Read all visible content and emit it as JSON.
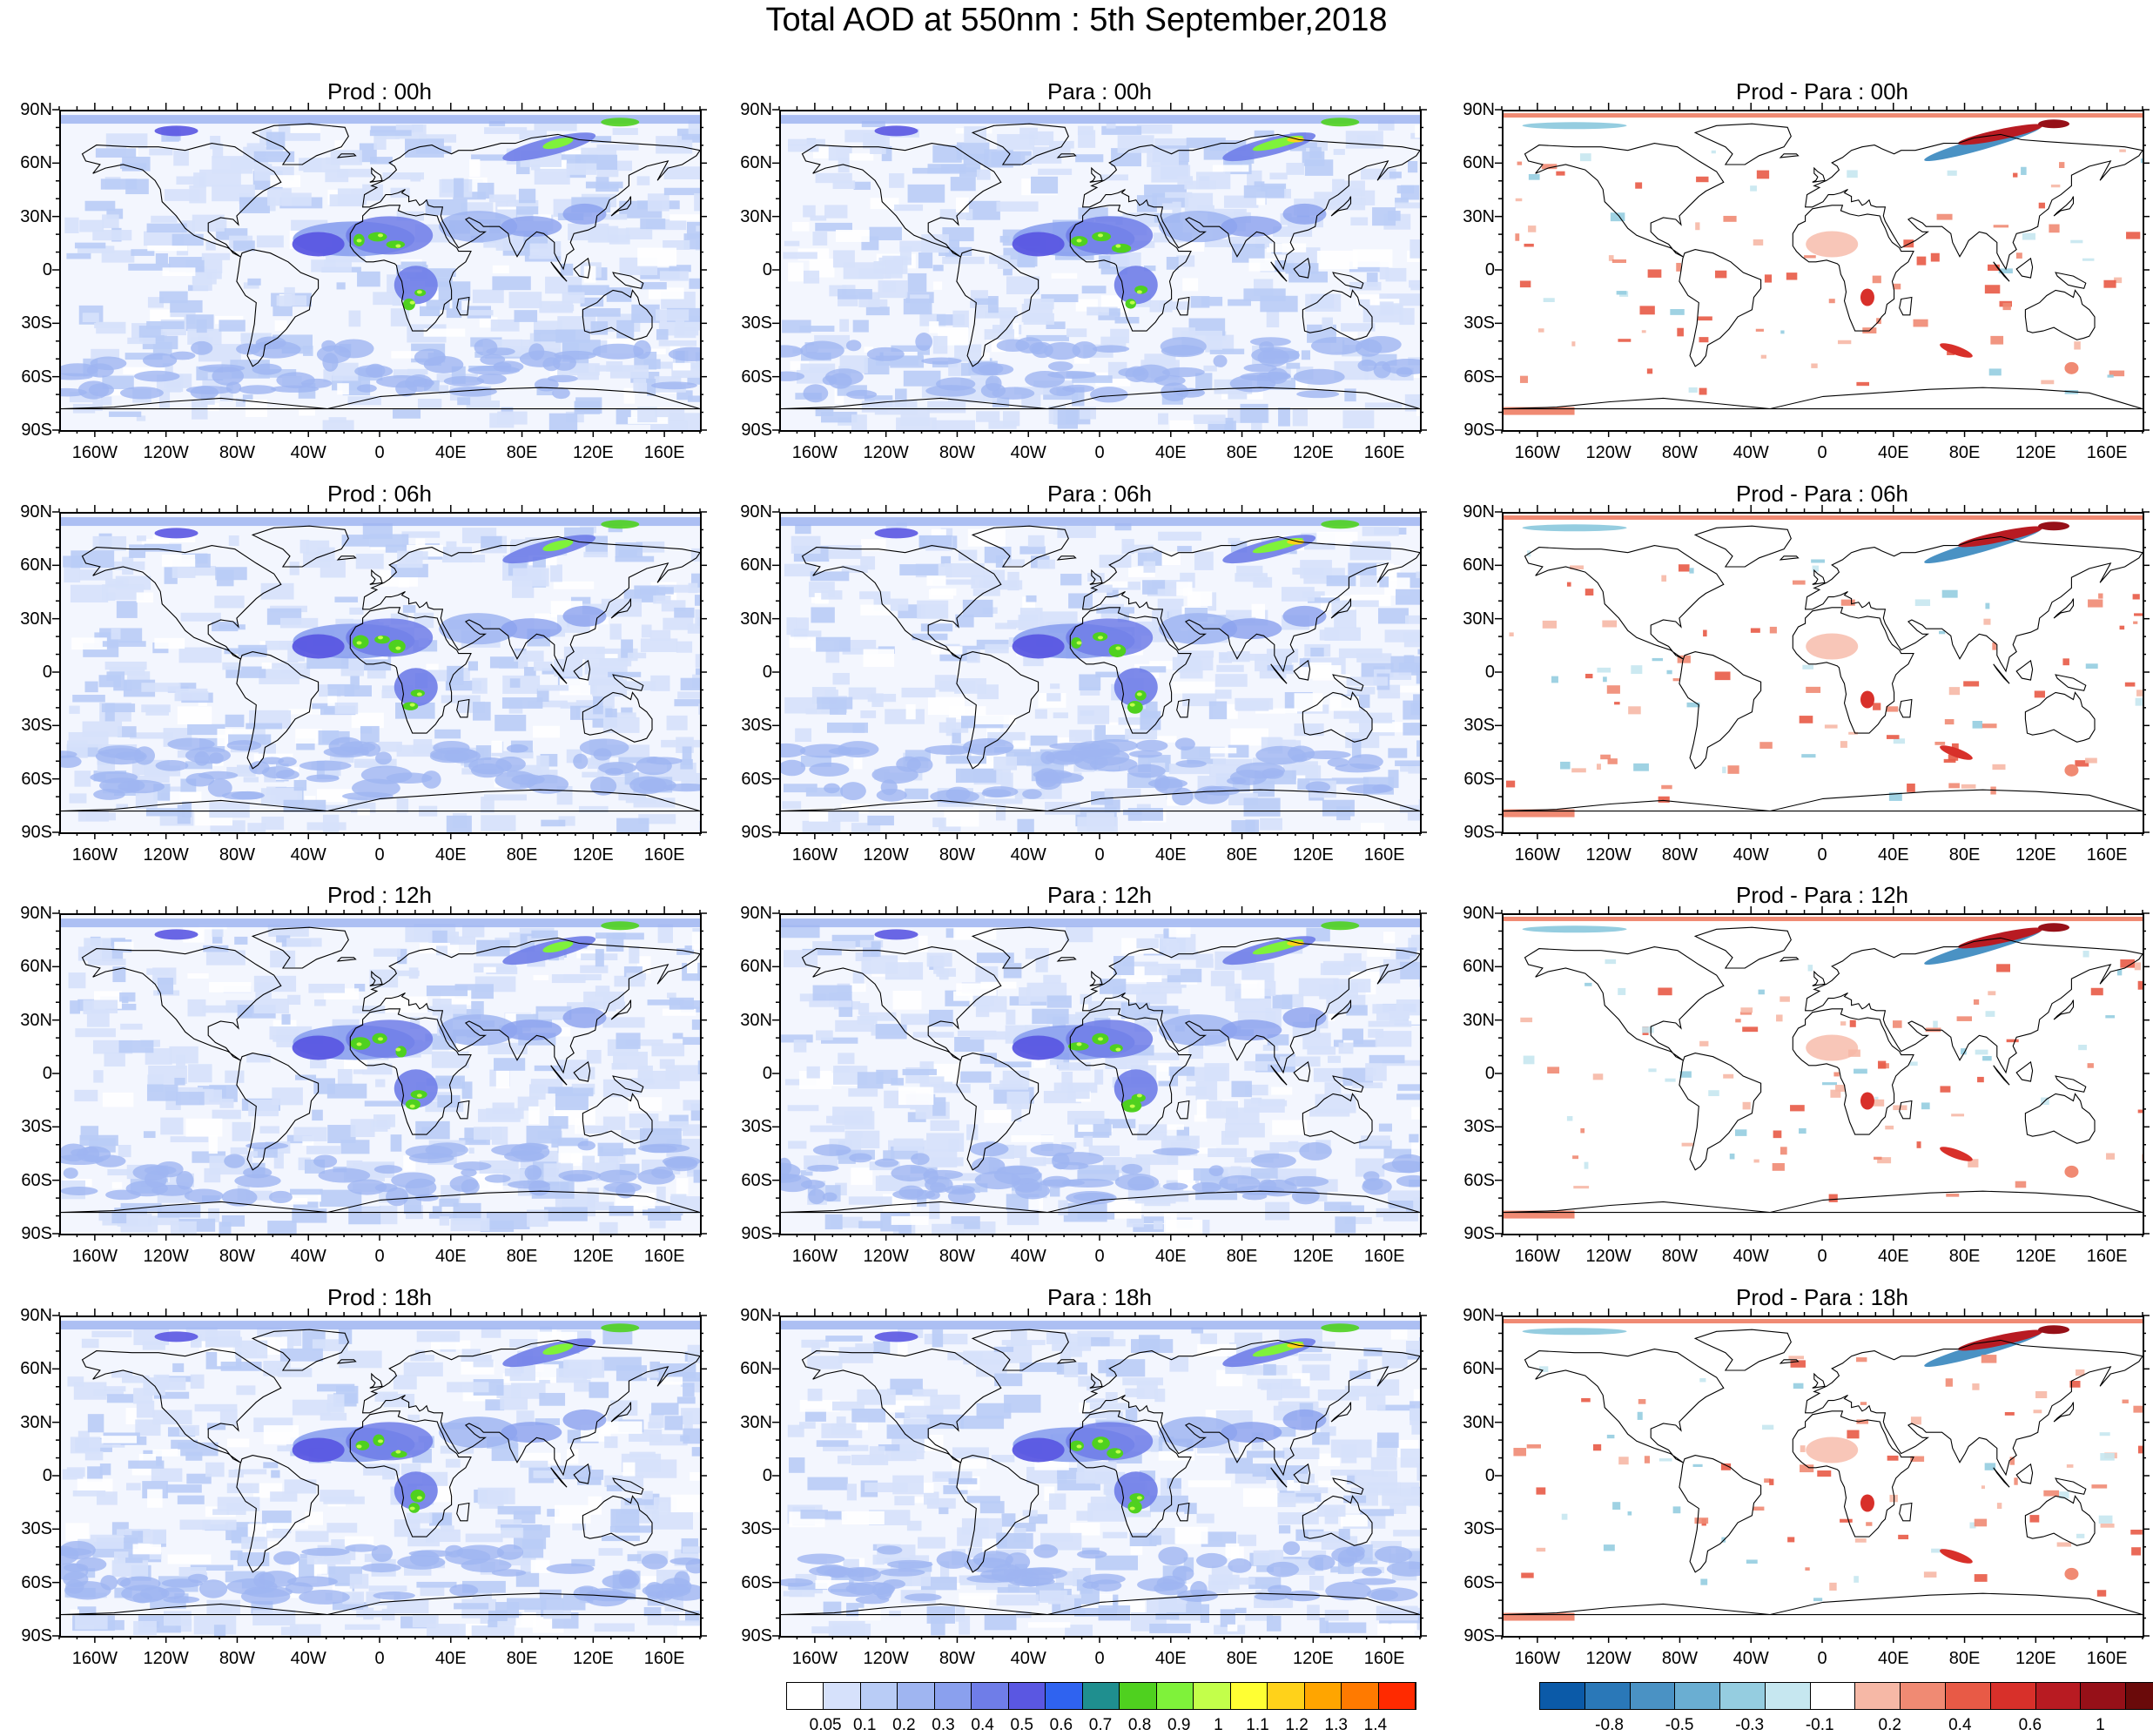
{
  "title": "Total AOD at 550nm : 5th September,2018",
  "lat_labels": [
    "90N",
    "60N",
    "30N",
    "0",
    "30S",
    "60S",
    "90S"
  ],
  "lon_labels": [
    "160W",
    "120W",
    "80W",
    "40W",
    "0",
    "40E",
    "80E",
    "120E",
    "160E"
  ],
  "panels": [
    {
      "title": "Prod : 00h",
      "kind": "aod"
    },
    {
      "title": "Para : 00h",
      "kind": "aod"
    },
    {
      "title": "Prod - Para : 00h",
      "kind": "diff"
    },
    {
      "title": "Prod : 06h",
      "kind": "aod"
    },
    {
      "title": "Para : 06h",
      "kind": "aod"
    },
    {
      "title": "Prod - Para : 06h",
      "kind": "diff"
    },
    {
      "title": "Prod : 12h",
      "kind": "aod"
    },
    {
      "title": "Para : 12h",
      "kind": "aod"
    },
    {
      "title": "Prod - Para : 12h",
      "kind": "diff"
    },
    {
      "title": "Prod : 18h",
      "kind": "aod"
    },
    {
      "title": "Para : 18h",
      "kind": "aod"
    },
    {
      "title": "Prod - Para : 18h",
      "kind": "diff"
    }
  ],
  "aod_colorbar": {
    "labels": [
      "0.05",
      "0.1",
      "0.2",
      "0.3",
      "0.4",
      "0.5",
      "0.6",
      "0.7",
      "0.8",
      "0.9",
      "1",
      "1.1",
      "1.2",
      "1.3",
      "1.4"
    ],
    "colors": [
      "#ffffff",
      "#d6e1fb",
      "#b9ccf6",
      "#9fb5f1",
      "#8aa0ee",
      "#6f7de8",
      "#5a57e2",
      "#2f63f0",
      "#1f8f8f",
      "#4fd11f",
      "#7ff23a",
      "#c3ff4a",
      "#ffff33",
      "#ffd21a",
      "#ffa500",
      "#ff7a00",
      "#ff2a00"
    ]
  },
  "diff_colorbar": {
    "labels": [
      "-0.8",
      "-0.5",
      "-0.3",
      "-0.1",
      "0.2",
      "0.4",
      "0.6",
      "1"
    ],
    "colors": [
      "#0b5aa8",
      "#2a78b8",
      "#4a92c4",
      "#6aaed2",
      "#95cde0",
      "#c6e7f0",
      "#ffffff",
      "#f6b8a6",
      "#f08a73",
      "#e85a46",
      "#d8302a",
      "#b81b22",
      "#961018",
      "#6a0a0a"
    ]
  }
}
